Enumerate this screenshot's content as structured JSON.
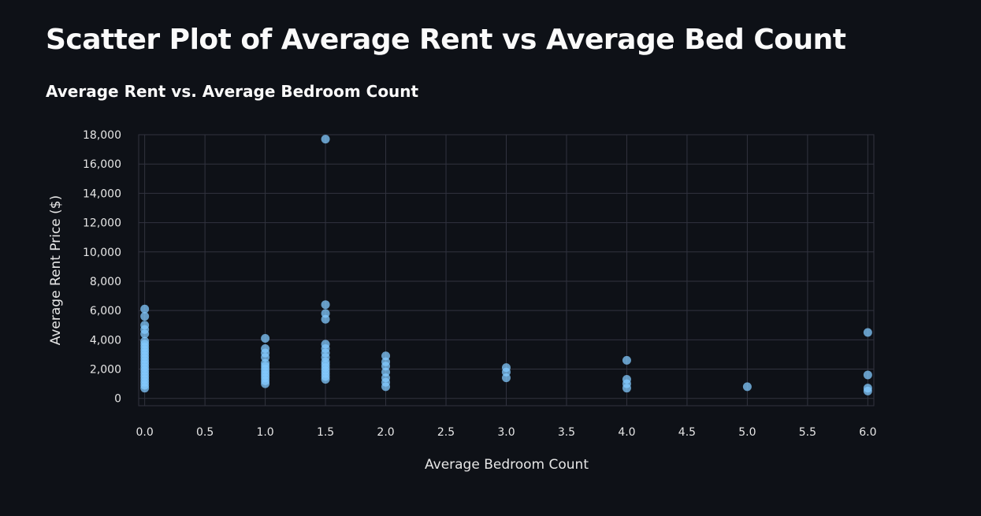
{
  "page": {
    "title": "Scatter Plot of Average Rent vs Average Bed Count"
  },
  "colors": {
    "background": "#0e1117",
    "grid": "#31333f",
    "point": "#83c9ff"
  },
  "chart_data": {
    "type": "scatter",
    "title": "Average Rent vs. Average Bedroom Count",
    "xlabel": "Average Bedroom Count",
    "ylabel": "Average Rent Price ($)",
    "xlim": [
      -0.05,
      6.05
    ],
    "ylim": [
      -500,
      18000
    ],
    "x_ticks": [
      0,
      0.5,
      1,
      1.5,
      2,
      2.5,
      3,
      3.5,
      4,
      4.5,
      5,
      5.5,
      6
    ],
    "x_tick_labels": [
      "0.0",
      "0.5",
      "1.0",
      "1.5",
      "2.0",
      "2.5",
      "3.0",
      "3.5",
      "4.0",
      "4.5",
      "5.0",
      "5.5",
      "6.0"
    ],
    "y_ticks": [
      0,
      2000,
      4000,
      6000,
      8000,
      10000,
      12000,
      14000,
      16000,
      18000
    ],
    "y_tick_labels": [
      "0",
      "2,000",
      "4,000",
      "6,000",
      "8,000",
      "10,000",
      "12,000",
      "14,000",
      "16,000",
      "18,000"
    ],
    "grid": true,
    "points": [
      {
        "x": 0,
        "y": 6100
      },
      {
        "x": 0,
        "y": 5600
      },
      {
        "x": 0,
        "y": 5000
      },
      {
        "x": 0,
        "y": 4700
      },
      {
        "x": 0,
        "y": 4400
      },
      {
        "x": 0,
        "y": 3900
      },
      {
        "x": 0,
        "y": 3700
      },
      {
        "x": 0,
        "y": 3500
      },
      {
        "x": 0,
        "y": 3300
      },
      {
        "x": 0,
        "y": 3100
      },
      {
        "x": 0,
        "y": 2900
      },
      {
        "x": 0,
        "y": 2700
      },
      {
        "x": 0,
        "y": 2500
      },
      {
        "x": 0,
        "y": 2300
      },
      {
        "x": 0,
        "y": 2100
      },
      {
        "x": 0,
        "y": 1900
      },
      {
        "x": 0,
        "y": 1700
      },
      {
        "x": 0,
        "y": 1500
      },
      {
        "x": 0,
        "y": 1300
      },
      {
        "x": 0,
        "y": 1100
      },
      {
        "x": 0,
        "y": 900
      },
      {
        "x": 0,
        "y": 700
      },
      {
        "x": 1,
        "y": 4100
      },
      {
        "x": 1,
        "y": 3400
      },
      {
        "x": 1,
        "y": 3100
      },
      {
        "x": 1,
        "y": 2800
      },
      {
        "x": 1,
        "y": 2400
      },
      {
        "x": 1,
        "y": 2200
      },
      {
        "x": 1,
        "y": 2000
      },
      {
        "x": 1,
        "y": 1800
      },
      {
        "x": 1,
        "y": 1600
      },
      {
        "x": 1,
        "y": 1400
      },
      {
        "x": 1,
        "y": 1200
      },
      {
        "x": 1,
        "y": 1000
      },
      {
        "x": 1.5,
        "y": 17700
      },
      {
        "x": 1.5,
        "y": 6400
      },
      {
        "x": 1.5,
        "y": 5800
      },
      {
        "x": 1.5,
        "y": 5400
      },
      {
        "x": 1.5,
        "y": 3700
      },
      {
        "x": 1.5,
        "y": 3400
      },
      {
        "x": 1.5,
        "y": 3100
      },
      {
        "x": 1.5,
        "y": 2800
      },
      {
        "x": 1.5,
        "y": 2500
      },
      {
        "x": 1.5,
        "y": 2300
      },
      {
        "x": 1.5,
        "y": 2100
      },
      {
        "x": 1.5,
        "y": 1900
      },
      {
        "x": 1.5,
        "y": 1700
      },
      {
        "x": 1.5,
        "y": 1500
      },
      {
        "x": 1.5,
        "y": 1300
      },
      {
        "x": 2,
        "y": 2900
      },
      {
        "x": 2,
        "y": 2500
      },
      {
        "x": 2,
        "y": 2200
      },
      {
        "x": 2,
        "y": 1800
      },
      {
        "x": 2,
        "y": 1400
      },
      {
        "x": 2,
        "y": 1100
      },
      {
        "x": 2,
        "y": 800
      },
      {
        "x": 3,
        "y": 2100
      },
      {
        "x": 3,
        "y": 1800
      },
      {
        "x": 3,
        "y": 1400
      },
      {
        "x": 4,
        "y": 2600
      },
      {
        "x": 4,
        "y": 1300
      },
      {
        "x": 4,
        "y": 1000
      },
      {
        "x": 4,
        "y": 700
      },
      {
        "x": 5,
        "y": 800
      },
      {
        "x": 6,
        "y": 4500
      },
      {
        "x": 6,
        "y": 1600
      },
      {
        "x": 6,
        "y": 700
      },
      {
        "x": 6,
        "y": 500
      }
    ]
  }
}
